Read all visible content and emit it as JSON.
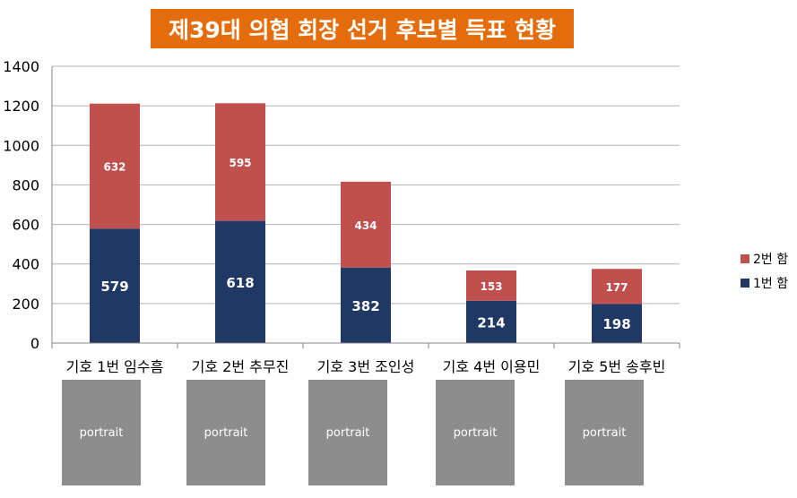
{
  "chart_data": {
    "type": "bar",
    "stacked": true,
    "title": "제39대 의협 회장 선거 후보별 득표 현황",
    "categories": [
      "기호 1번 임수흠",
      "기호 2번 추무진",
      "기호 3번 조인성",
      "기호 4번 이용민",
      "기호 5번 송후빈"
    ],
    "series": [
      {
        "name": "1번 함",
        "color": "#1f3864",
        "values": [
          579,
          618,
          382,
          214,
          198
        ]
      },
      {
        "name": "2번 함",
        "color": "#c0504d",
        "values": [
          632,
          595,
          434,
          153,
          177
        ]
      }
    ],
    "ylim": [
      0,
      1400
    ],
    "yticks": [
      0,
      200,
      400,
      600,
      800,
      1000,
      1200,
      1400
    ],
    "grid": true,
    "legend_position": "right"
  },
  "photos": {
    "placeholder_label": "portrait"
  }
}
